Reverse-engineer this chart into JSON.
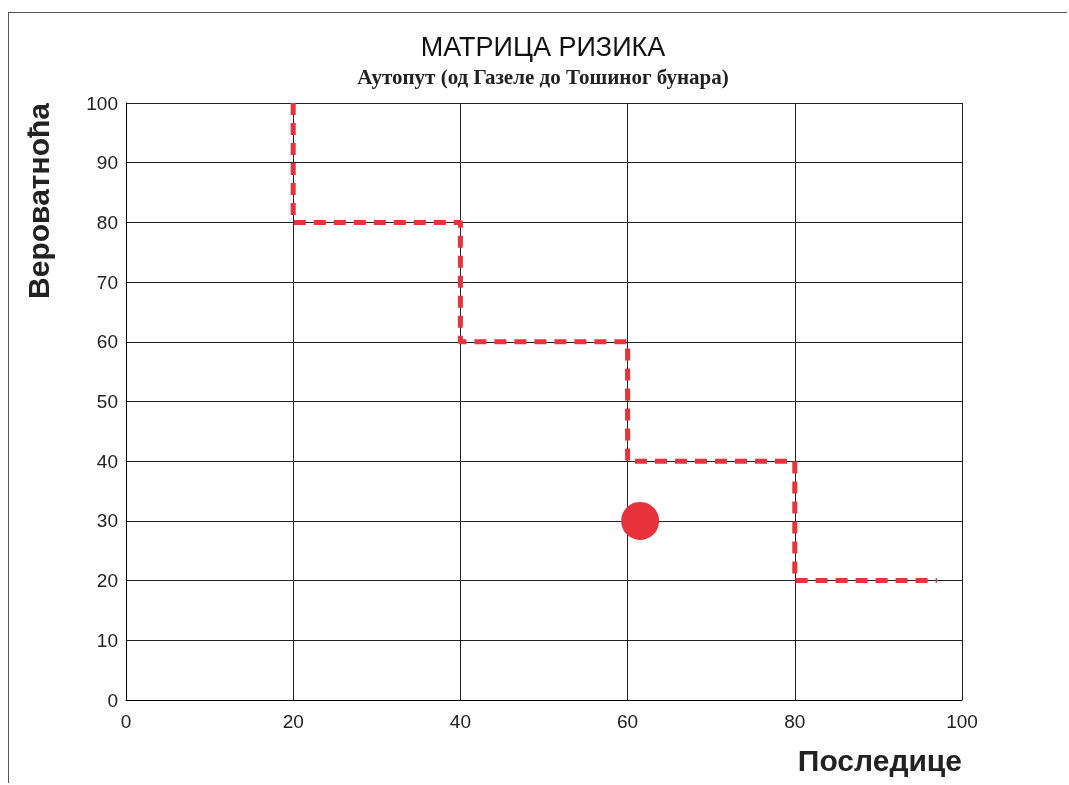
{
  "chart_data": {
    "type": "line",
    "title": "МАТРИЦА РИЗИКА",
    "subtitle": "Аутопут (од Газеле до Тошиног бунара)",
    "xlabel": "Последице",
    "ylabel": "Вероватноћа",
    "series": [
      {
        "color": "#e8323c",
        "line_style": "dashed",
        "marker": "none",
        "x": [
          20,
          20,
          40,
          40,
          60,
          60,
          80,
          80,
          97
        ],
        "values": [
          100,
          80,
          80,
          60,
          60,
          40,
          40,
          20,
          20
        ]
      },
      {
        "type": "scatter",
        "color": "#e8323c",
        "marker": "circle",
        "x": [
          61.5
        ],
        "values": [
          30
        ]
      }
    ],
    "xlim": [
      0,
      100
    ],
    "xticks": [
      0,
      20,
      40,
      60,
      80,
      100
    ],
    "ylim": [
      0,
      100
    ],
    "yticks": [
      0,
      10,
      20,
      30,
      40,
      50,
      60,
      70,
      80,
      90,
      100
    ],
    "grid": true
  }
}
